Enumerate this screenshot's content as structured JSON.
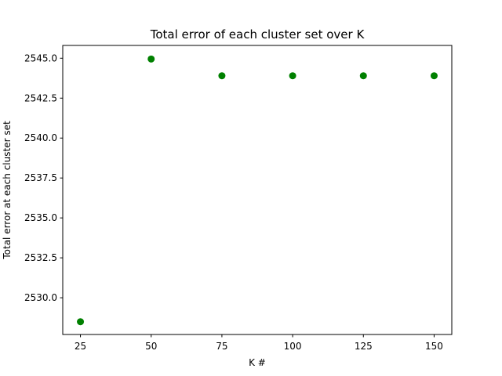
{
  "chart_data": {
    "type": "scatter",
    "title": "Total error of each cluster set over K",
    "xlabel": "K #",
    "ylabel": "Total error at each cluster set",
    "x": [
      25,
      50,
      75,
      100,
      125,
      150
    ],
    "series": [
      {
        "values": [
          2528.5,
          2544.95,
          2543.9,
          2543.9,
          2543.9,
          2543.9
        ],
        "color": "#008000"
      }
    ],
    "xlim": [
      18.75,
      156.25
    ],
    "ylim": [
      2527.7,
      2545.8
    ],
    "xticks": [
      25,
      50,
      75,
      100,
      125,
      150
    ],
    "xtick_labels": [
      "25",
      "50",
      "75",
      "100",
      "125",
      "150"
    ],
    "yticks": [
      2530.0,
      2532.5,
      2535.0,
      2537.5,
      2540.0,
      2542.5,
      2545.0
    ],
    "ytick_labels": [
      "2530.0",
      "2532.5",
      "2535.0",
      "2537.5",
      "2540.0",
      "2542.5",
      "2545.0"
    ],
    "grid": false,
    "legend": false
  }
}
